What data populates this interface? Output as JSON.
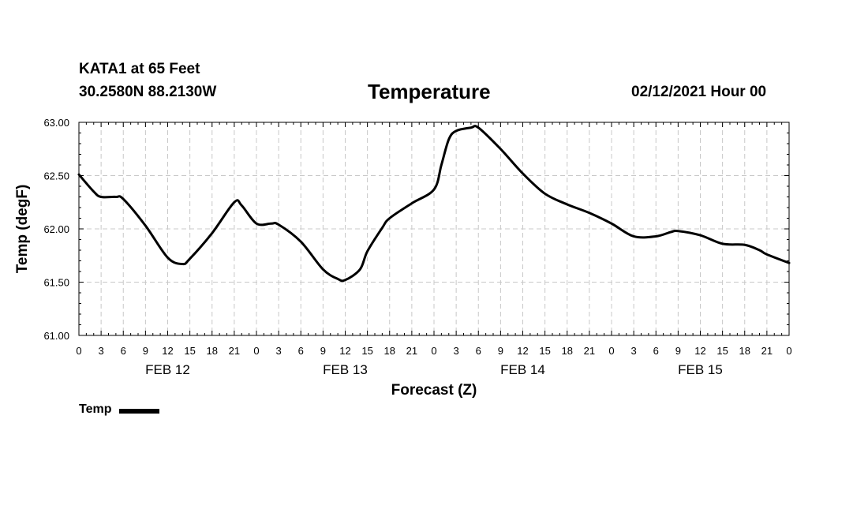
{
  "header": {
    "station": "KATA1 at 65 Feet",
    "coords": "30.2580N 88.2130W",
    "title": "Temperature",
    "issued": "02/12/2021 Hour 00"
  },
  "legend": {
    "label": "Temp"
  },
  "chart_data": {
    "type": "line",
    "title": "Temperature",
    "xlabel": "Forecast (Z)",
    "ylabel": "Temp (degF)",
    "ylim": [
      61.0,
      63.0
    ],
    "yticks": [
      61.0,
      61.5,
      62.0,
      62.5,
      63.0
    ],
    "ytick_labels": [
      "61.00",
      "61.50",
      "62.00",
      "62.50",
      "63.00"
    ],
    "xlim": [
      0,
      96
    ],
    "xticks": [
      0,
      3,
      6,
      9,
      12,
      15,
      18,
      21,
      24,
      27,
      30,
      33,
      36,
      39,
      42,
      45,
      48,
      51,
      54,
      57,
      60,
      63,
      66,
      69,
      72,
      75,
      78,
      81,
      84,
      87,
      90,
      93,
      96
    ],
    "xtick_labels": [
      "0",
      "3",
      "6",
      "9",
      "12",
      "15",
      "18",
      "21",
      "0",
      "3",
      "6",
      "9",
      "12",
      "15",
      "18",
      "21",
      "0",
      "3",
      "6",
      "9",
      "12",
      "15",
      "18",
      "21",
      "0",
      "3",
      "6",
      "9",
      "12",
      "15",
      "18",
      "21",
      "0"
    ],
    "day_labels": [
      {
        "hour": 12,
        "label": "FEB 12"
      },
      {
        "hour": 36,
        "label": "FEB 13"
      },
      {
        "hour": 60,
        "label": "FEB 14"
      },
      {
        "hour": 84,
        "label": "FEB 15"
      }
    ],
    "grid": true,
    "line_color": "#000000",
    "series": [
      {
        "name": "Temp",
        "x": [
          0,
          2,
          3,
          5,
          6,
          9,
          12,
          14,
          15,
          18,
          21,
          22,
          24,
          26,
          27,
          30,
          33,
          35,
          36,
          38,
          39,
          41,
          42,
          45,
          48,
          49,
          50,
          51,
          53,
          54,
          57,
          60,
          63,
          66,
          69,
          72,
          75,
          78,
          80,
          81,
          84,
          87,
          90,
          92,
          93,
          96
        ],
        "y": [
          62.51,
          62.35,
          62.3,
          62.3,
          62.28,
          62.03,
          61.73,
          61.67,
          61.72,
          61.96,
          62.25,
          62.22,
          62.05,
          62.05,
          62.04,
          61.88,
          61.62,
          61.53,
          61.52,
          61.62,
          61.79,
          62.01,
          62.1,
          62.24,
          62.37,
          62.6,
          62.84,
          62.92,
          62.95,
          62.95,
          62.75,
          62.52,
          62.33,
          62.23,
          62.15,
          62.05,
          61.93,
          61.93,
          61.97,
          61.98,
          61.94,
          61.86,
          61.85,
          61.8,
          61.76,
          61.68
        ]
      }
    ]
  }
}
